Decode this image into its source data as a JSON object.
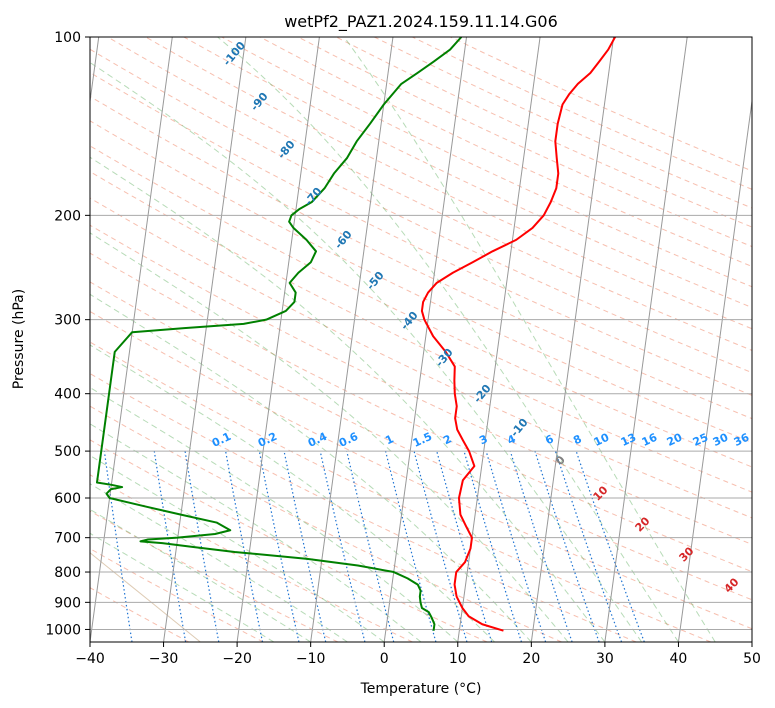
{
  "chart_data": {
    "type": "line",
    "title": "wetPf2_PAZ1.2024.159.11.14.G06",
    "xlabel": "Temperature (°C)",
    "ylabel": "Pressure (hPa)",
    "xlim": [
      -40,
      50
    ],
    "ylim": [
      1050,
      100
    ],
    "y_scale": "log",
    "grid": true,
    "x_ticks": [
      -40,
      -30,
      -20,
      -10,
      0,
      10,
      20,
      30,
      40,
      50
    ],
    "x_tick_labels": [
      "−40",
      "−30",
      "−20",
      "−10",
      "0",
      "10",
      "20",
      "30",
      "40",
      "50"
    ],
    "y_ticks": [
      100,
      200,
      300,
      400,
      500,
      600,
      700,
      800,
      900,
      1000
    ],
    "y_tick_labels": [
      "100",
      "200",
      "300",
      "400",
      "500",
      "600",
      "700",
      "800",
      "900",
      "1000"
    ],
    "series": [
      {
        "color": "#ff0000",
        "points": [
          [
            1005,
            16.0
          ],
          [
            980,
            13.0
          ],
          [
            950,
            11.0
          ],
          [
            920,
            10.0
          ],
          [
            880,
            9.0
          ],
          [
            840,
            8.5
          ],
          [
            800,
            8.5
          ],
          [
            770,
            9.5
          ],
          [
            730,
            10.0
          ],
          [
            700,
            10.0
          ],
          [
            670,
            9.0
          ],
          [
            640,
            8.0
          ],
          [
            600,
            7.5
          ],
          [
            560,
            7.7
          ],
          [
            530,
            9.0
          ],
          [
            500,
            8.0
          ],
          [
            480,
            7.0
          ],
          [
            460,
            6.0
          ],
          [
            440,
            5.5
          ],
          [
            420,
            5.5
          ],
          [
            400,
            5.0
          ],
          [
            380,
            4.7
          ],
          [
            360,
            4.5
          ],
          [
            340,
            3.0
          ],
          [
            320,
            1.0
          ],
          [
            300,
            -0.5
          ],
          [
            290,
            -1.0
          ],
          [
            280,
            -1.0
          ],
          [
            270,
            -0.5
          ],
          [
            260,
            0.5
          ],
          [
            250,
            2.5
          ],
          [
            240,
            5.0
          ],
          [
            230,
            7.5
          ],
          [
            220,
            10.5
          ],
          [
            210,
            12.5
          ],
          [
            200,
            13.8
          ],
          [
            190,
            14.5
          ],
          [
            180,
            15.0
          ],
          [
            170,
            15.0
          ],
          [
            160,
            14.5
          ],
          [
            150,
            14.0
          ],
          [
            140,
            14.0
          ],
          [
            130,
            14.3
          ],
          [
            125,
            15.0
          ],
          [
            120,
            16.0
          ],
          [
            115,
            17.5
          ],
          [
            110,
            18.5
          ],
          [
            105,
            19.5
          ],
          [
            100,
            20.2
          ]
        ]
      },
      {
        "color": "#008000",
        "points": [
          [
            1005,
            6.5
          ],
          [
            980,
            6.5
          ],
          [
            955,
            6.0
          ],
          [
            935,
            5.5
          ],
          [
            920,
            4.5
          ],
          [
            900,
            4.2
          ],
          [
            880,
            4.0
          ],
          [
            860,
            4.0
          ],
          [
            840,
            3.5
          ],
          [
            820,
            2.0
          ],
          [
            800,
            0.0
          ],
          [
            780,
            -5.0
          ],
          [
            760,
            -12.0
          ],
          [
            740,
            -22.0
          ],
          [
            725,
            -28.0
          ],
          [
            715,
            -32.0
          ],
          [
            710,
            -35.0
          ],
          [
            705,
            -34.0
          ],
          [
            700,
            -30.0
          ],
          [
            690,
            -25.0
          ],
          [
            680,
            -23.0
          ],
          [
            660,
            -25.0
          ],
          [
            640,
            -30.0
          ],
          [
            620,
            -35.0
          ],
          [
            600,
            -40.0
          ],
          [
            590,
            -40.5
          ],
          [
            580,
            -40.0
          ],
          [
            575,
            -38.5
          ],
          [
            570,
            -40.0
          ],
          [
            565,
            -42.0
          ],
          [
            340,
            -42.0
          ],
          [
            315,
            -40.0
          ],
          [
            310,
            -33.0
          ],
          [
            305,
            -25.0
          ],
          [
            300,
            -22.0
          ],
          [
            290,
            -19.5
          ],
          [
            280,
            -18.5
          ],
          [
            270,
            -18.5
          ],
          [
            260,
            -19.5
          ],
          [
            250,
            -18.5
          ],
          [
            240,
            -17.0
          ],
          [
            230,
            -16.5
          ],
          [
            220,
            -18.0
          ],
          [
            210,
            -20.0
          ],
          [
            205,
            -20.7
          ],
          [
            200,
            -20.5
          ],
          [
            195,
            -19.5
          ],
          [
            190,
            -18.0
          ],
          [
            180,
            -16.5
          ],
          [
            170,
            -15.5
          ],
          [
            160,
            -14.0
          ],
          [
            150,
            -13.0
          ],
          [
            140,
            -11.5
          ],
          [
            130,
            -10.0
          ],
          [
            120,
            -8.0
          ],
          [
            115,
            -6.0
          ],
          [
            110,
            -4.0
          ],
          [
            105,
            -2.0
          ],
          [
            100,
            -0.7
          ]
        ]
      }
    ],
    "dry_adiabat_labels": [
      "-100",
      "-90",
      "-80",
      "-70",
      "-60",
      "-50",
      "-40",
      "-30",
      "-20",
      "-10"
    ],
    "mixing_ratio_labels": [
      "0.1",
      "0.2",
      "0.4",
      "0.6",
      "1",
      "1.5",
      "2",
      "3",
      "4",
      "6",
      "8",
      "10",
      "13",
      "16",
      "20",
      "25",
      "30",
      "36"
    ],
    "isotherm_labels": [
      "0",
      "10",
      "20",
      "30",
      "40"
    ]
  }
}
